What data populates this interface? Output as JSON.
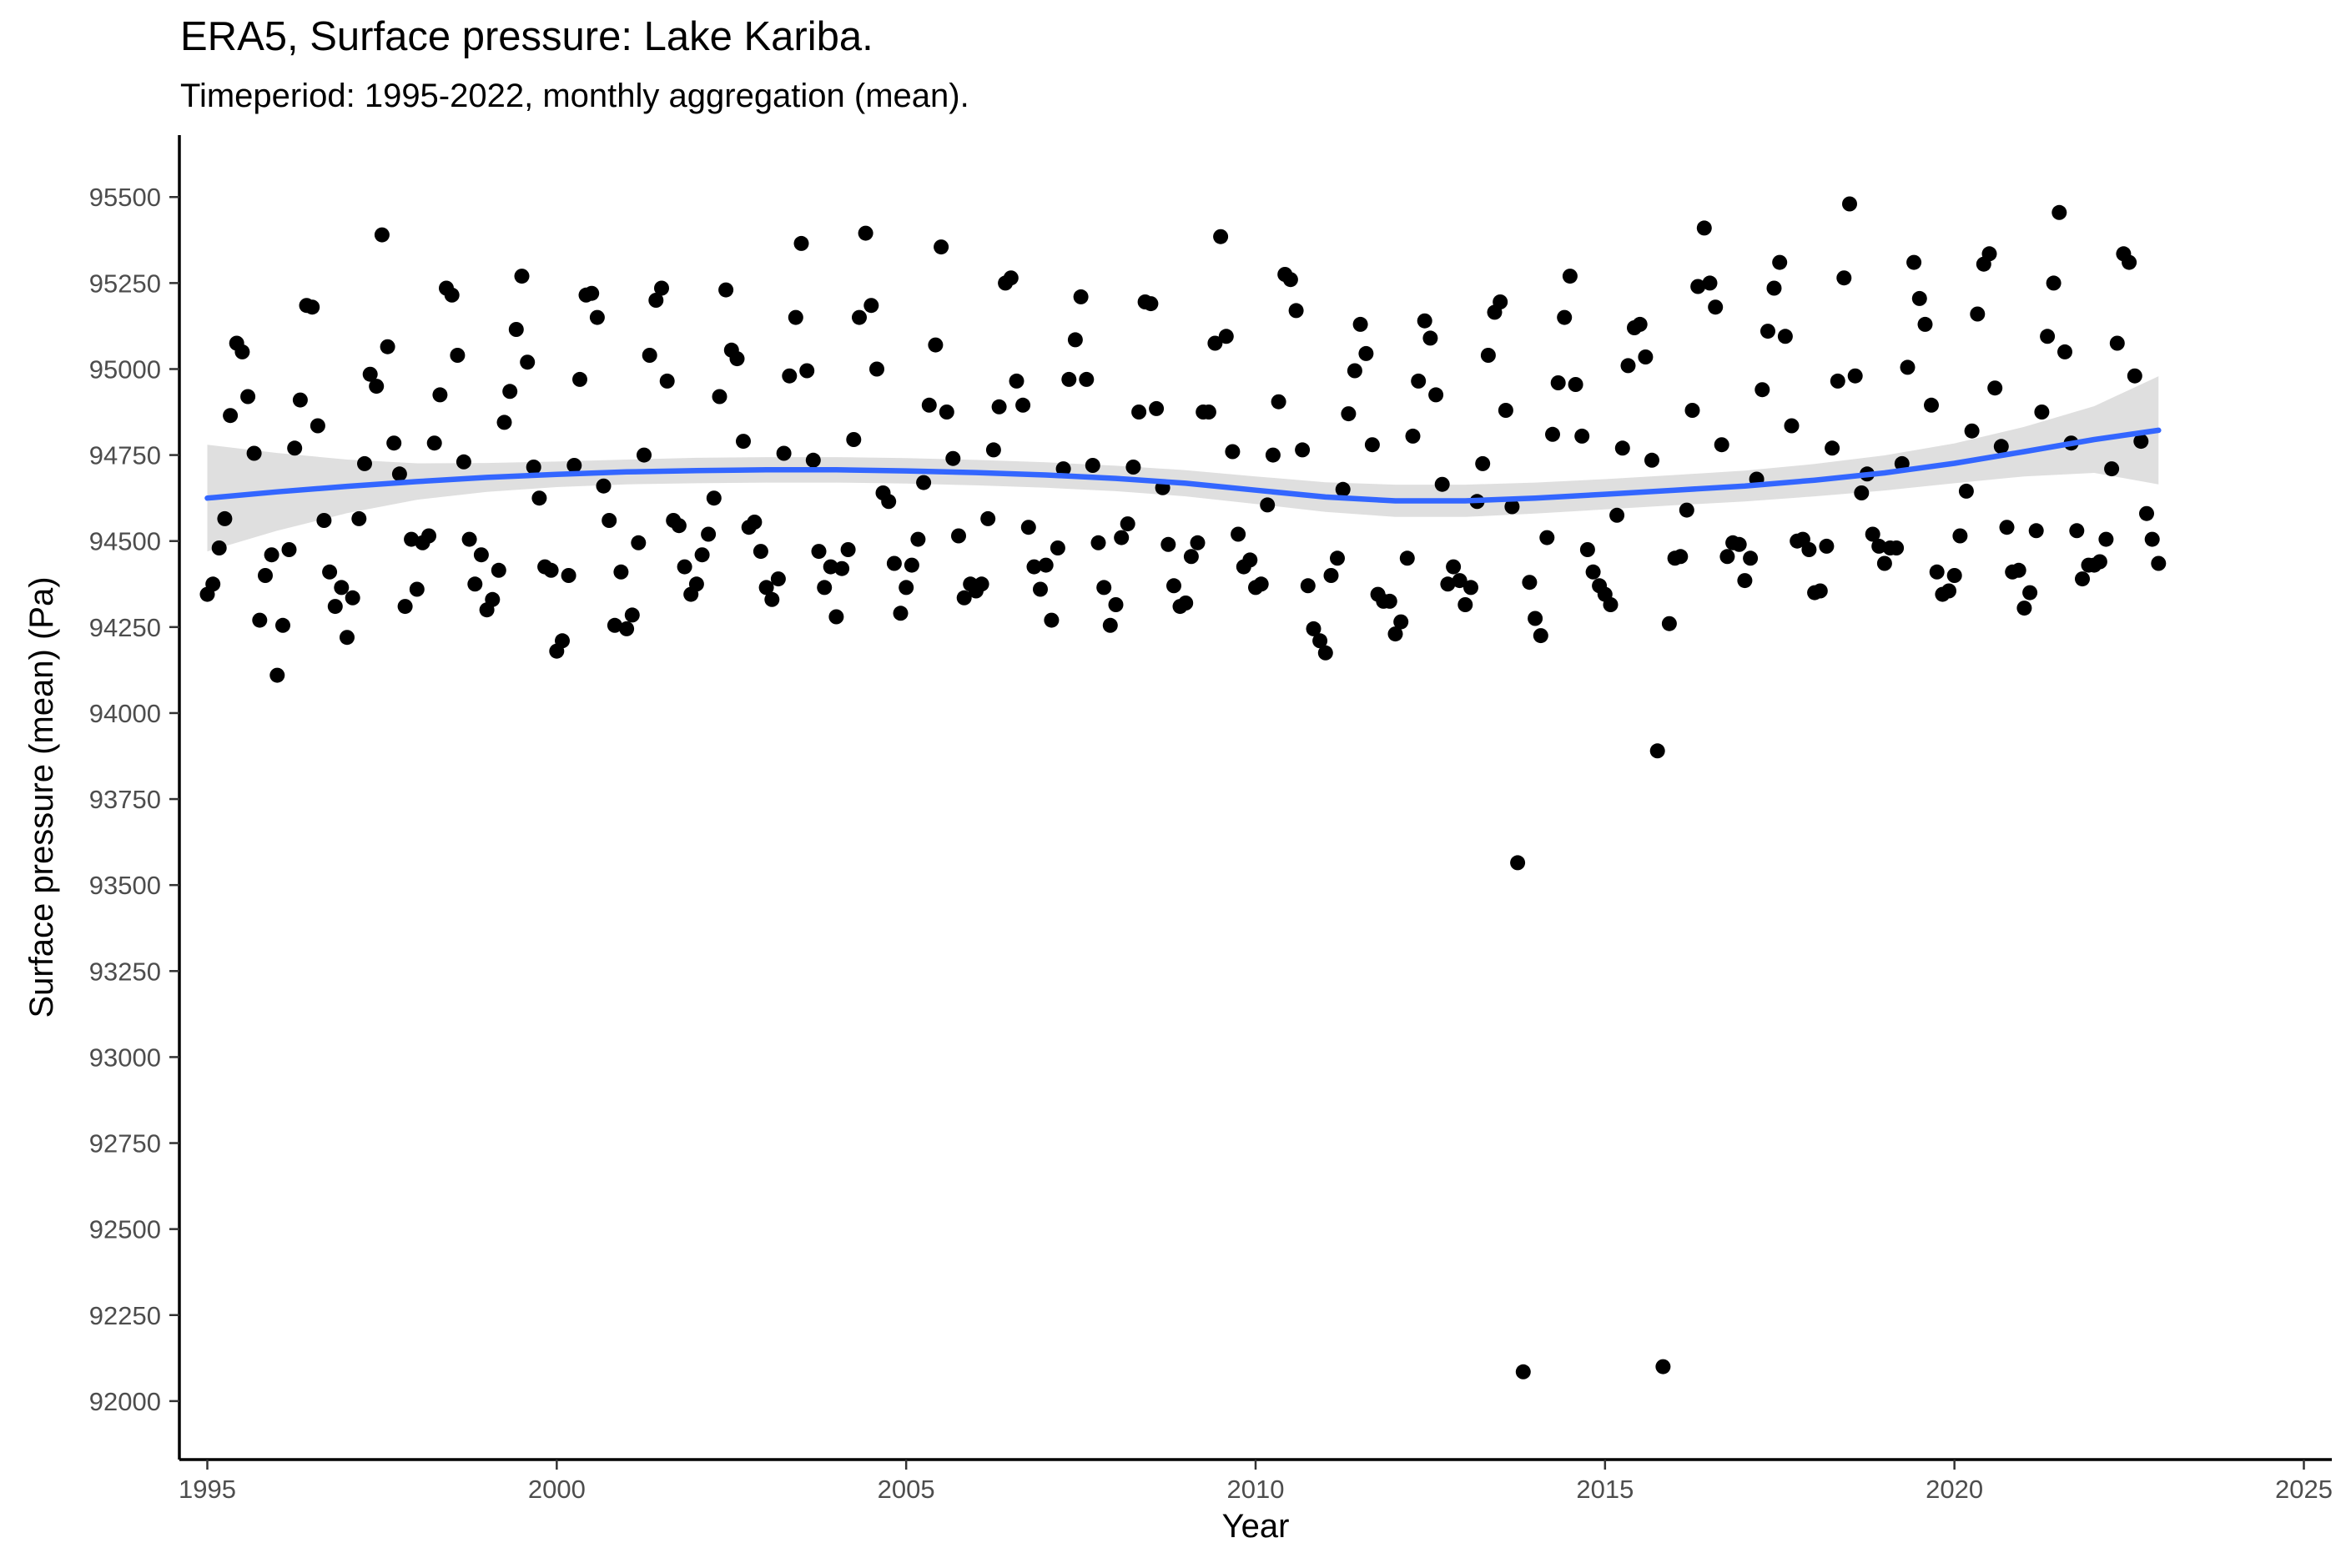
{
  "chart_data": {
    "type": "scatter",
    "title": "ERA5, Surface pressure: Lake Kariba.",
    "subtitle": "Timeperiod: 1995-2022, monthly aggregation (mean).",
    "xlabel": "Year",
    "ylabel": "Surface pressure (mean) (Pa)",
    "xlim": [
      1994.6,
      2025.4
    ],
    "ylim": [
      91830,
      95680
    ],
    "x_ticks": [
      1995,
      2000,
      2005,
      2010,
      2015,
      2020,
      2025
    ],
    "y_ticks": [
      92000,
      92250,
      92500,
      92750,
      93000,
      93250,
      93500,
      93750,
      94000,
      94250,
      94500,
      94750,
      95000,
      95250,
      95500
    ],
    "grid": false,
    "legend": "none",
    "colors": {
      "points": "#000000",
      "smooth_line": "#3366ff",
      "confidence_band": "#d9d9d9"
    },
    "points": [
      [
        1995.0,
        94345
      ],
      [
        1995.08,
        94375
      ],
      [
        1995.17,
        94480
      ],
      [
        1995.25,
        94565
      ],
      [
        1995.33,
        94865
      ],
      [
        1995.42,
        95075
      ],
      [
        1995.5,
        95050
      ],
      [
        1995.58,
        94920
      ],
      [
        1995.67,
        94755
      ],
      [
        1995.75,
        94270
      ],
      [
        1995.83,
        94400
      ],
      [
        1995.92,
        94460
      ],
      [
        1996.0,
        94110
      ],
      [
        1996.08,
        94255
      ],
      [
        1996.17,
        94475
      ],
      [
        1996.25,
        94770
      ],
      [
        1996.33,
        94910
      ],
      [
        1996.42,
        95185
      ],
      [
        1996.5,
        95180
      ],
      [
        1996.58,
        94835
      ],
      [
        1996.67,
        94560
      ],
      [
        1996.75,
        94410
      ],
      [
        1996.83,
        94310
      ],
      [
        1996.92,
        94365
      ],
      [
        1997.0,
        94220
      ],
      [
        1997.08,
        94335
      ],
      [
        1997.17,
        94565
      ],
      [
        1997.25,
        94725
      ],
      [
        1997.33,
        94985
      ],
      [
        1997.42,
        94950
      ],
      [
        1997.5,
        95390
      ],
      [
        1997.58,
        95065
      ],
      [
        1997.67,
        94785
      ],
      [
        1997.75,
        94695
      ],
      [
        1997.83,
        94310
      ],
      [
        1997.92,
        94505
      ],
      [
        1998.0,
        94360
      ],
      [
        1998.08,
        94495
      ],
      [
        1998.17,
        94515
      ],
      [
        1998.25,
        94785
      ],
      [
        1998.33,
        94925
      ],
      [
        1998.42,
        95235
      ],
      [
        1998.5,
        95215
      ],
      [
        1998.58,
        95040
      ],
      [
        1998.67,
        94730
      ],
      [
        1998.75,
        94505
      ],
      [
        1998.83,
        94375
      ],
      [
        1998.92,
        94460
      ],
      [
        1999.0,
        94300
      ],
      [
        1999.08,
        94330
      ],
      [
        1999.17,
        94415
      ],
      [
        1999.25,
        94845
      ],
      [
        1999.33,
        94935
      ],
      [
        1999.42,
        95115
      ],
      [
        1999.5,
        95270
      ],
      [
        1999.58,
        95020
      ],
      [
        1999.67,
        94715
      ],
      [
        1999.75,
        94625
      ],
      [
        1999.83,
        94425
      ],
      [
        1999.92,
        94415
      ],
      [
        2000.0,
        94180
      ],
      [
        2000.08,
        94210
      ],
      [
        2000.17,
        94400
      ],
      [
        2000.25,
        94720
      ],
      [
        2000.33,
        94970
      ],
      [
        2000.42,
        95215
      ],
      [
        2000.5,
        95220
      ],
      [
        2000.58,
        95150
      ],
      [
        2000.67,
        94660
      ],
      [
        2000.75,
        94560
      ],
      [
        2000.83,
        94255
      ],
      [
        2000.92,
        94410
      ],
      [
        2001.0,
        94245
      ],
      [
        2001.08,
        94285
      ],
      [
        2001.17,
        94495
      ],
      [
        2001.25,
        94750
      ],
      [
        2001.33,
        95040
      ],
      [
        2001.42,
        95200
      ],
      [
        2001.5,
        95235
      ],
      [
        2001.58,
        94965
      ],
      [
        2001.67,
        94560
      ],
      [
        2001.75,
        94545
      ],
      [
        2001.83,
        94425
      ],
      [
        2001.92,
        94345
      ],
      [
        2002.0,
        94375
      ],
      [
        2002.08,
        94460
      ],
      [
        2002.17,
        94520
      ],
      [
        2002.25,
        94625
      ],
      [
        2002.33,
        94920
      ],
      [
        2002.42,
        95230
      ],
      [
        2002.5,
        95055
      ],
      [
        2002.58,
        95030
      ],
      [
        2002.67,
        94790
      ],
      [
        2002.75,
        94540
      ],
      [
        2002.83,
        94555
      ],
      [
        2002.92,
        94470
      ],
      [
        2003.0,
        94365
      ],
      [
        2003.08,
        94330
      ],
      [
        2003.17,
        94390
      ],
      [
        2003.25,
        94755
      ],
      [
        2003.33,
        94980
      ],
      [
        2003.42,
        95150
      ],
      [
        2003.5,
        95365
      ],
      [
        2003.58,
        94995
      ],
      [
        2003.67,
        94735
      ],
      [
        2003.75,
        94470
      ],
      [
        2003.83,
        94365
      ],
      [
        2003.92,
        94425
      ],
      [
        2004.0,
        94280
      ],
      [
        2004.08,
        94420
      ],
      [
        2004.17,
        94475
      ],
      [
        2004.25,
        94795
      ],
      [
        2004.33,
        95150
      ],
      [
        2004.42,
        95395
      ],
      [
        2004.5,
        95185
      ],
      [
        2004.58,
        95000
      ],
      [
        2004.67,
        94640
      ],
      [
        2004.75,
        94615
      ],
      [
        2004.83,
        94435
      ],
      [
        2004.92,
        94290
      ],
      [
        2005.0,
        94365
      ],
      [
        2005.08,
        94430
      ],
      [
        2005.17,
        94505
      ],
      [
        2005.25,
        94670
      ],
      [
        2005.33,
        94895
      ],
      [
        2005.42,
        95070
      ],
      [
        2005.5,
        95355
      ],
      [
        2005.58,
        94875
      ],
      [
        2005.67,
        94740
      ],
      [
        2005.75,
        94515
      ],
      [
        2005.83,
        94335
      ],
      [
        2005.92,
        94375
      ],
      [
        2006.0,
        94355
      ],
      [
        2006.08,
        94375
      ],
      [
        2006.17,
        94565
      ],
      [
        2006.25,
        94765
      ],
      [
        2006.33,
        94890
      ],
      [
        2006.42,
        95250
      ],
      [
        2006.5,
        95265
      ],
      [
        2006.58,
        94965
      ],
      [
        2006.67,
        94895
      ],
      [
        2006.75,
        94540
      ],
      [
        2006.83,
        94425
      ],
      [
        2006.92,
        94360
      ],
      [
        2007.0,
        94430
      ],
      [
        2007.08,
        94270
      ],
      [
        2007.17,
        94480
      ],
      [
        2007.25,
        94710
      ],
      [
        2007.33,
        94970
      ],
      [
        2007.42,
        95085
      ],
      [
        2007.5,
        95210
      ],
      [
        2007.58,
        94970
      ],
      [
        2007.67,
        94720
      ],
      [
        2007.75,
        94495
      ],
      [
        2007.83,
        94365
      ],
      [
        2007.92,
        94255
      ],
      [
        2008.0,
        94315
      ],
      [
        2008.08,
        94510
      ],
      [
        2008.17,
        94550
      ],
      [
        2008.25,
        94715
      ],
      [
        2008.33,
        94875
      ],
      [
        2008.42,
        95195
      ],
      [
        2008.5,
        95190
      ],
      [
        2008.58,
        94885
      ],
      [
        2008.67,
        94655
      ],
      [
        2008.75,
        94490
      ],
      [
        2008.83,
        94370
      ],
      [
        2008.92,
        94310
      ],
      [
        2009.0,
        94320
      ],
      [
        2009.08,
        94455
      ],
      [
        2009.17,
        94495
      ],
      [
        2009.25,
        94875
      ],
      [
        2009.33,
        94875
      ],
      [
        2009.42,
        95075
      ],
      [
        2009.5,
        95385
      ],
      [
        2009.58,
        95095
      ],
      [
        2009.67,
        94760
      ],
      [
        2009.75,
        94520
      ],
      [
        2009.83,
        94425
      ],
      [
        2009.92,
        94445
      ],
      [
        2010.0,
        94365
      ],
      [
        2010.08,
        94375
      ],
      [
        2010.17,
        94605
      ],
      [
        2010.25,
        94750
      ],
      [
        2010.33,
        94905
      ],
      [
        2010.42,
        95275
      ],
      [
        2010.5,
        95260
      ],
      [
        2010.58,
        95170
      ],
      [
        2010.67,
        94765
      ],
      [
        2010.75,
        94370
      ],
      [
        2010.83,
        94245
      ],
      [
        2010.92,
        94210
      ],
      [
        2011.0,
        94175
      ],
      [
        2011.08,
        94400
      ],
      [
        2011.17,
        94450
      ],
      [
        2011.25,
        94650
      ],
      [
        2011.33,
        94870
      ],
      [
        2011.42,
        94995
      ],
      [
        2011.5,
        95130
      ],
      [
        2011.58,
        95045
      ],
      [
        2011.67,
        94780
      ],
      [
        2011.75,
        94345
      ],
      [
        2011.83,
        94325
      ],
      [
        2011.92,
        94325
      ],
      [
        2012.0,
        94230
      ],
      [
        2012.08,
        94265
      ],
      [
        2012.17,
        94450
      ],
      [
        2012.25,
        94805
      ],
      [
        2012.33,
        94965
      ],
      [
        2012.42,
        95140
      ],
      [
        2012.5,
        95090
      ],
      [
        2012.58,
        94925
      ],
      [
        2012.67,
        94665
      ],
      [
        2012.75,
        94375
      ],
      [
        2012.83,
        94425
      ],
      [
        2012.92,
        94385
      ],
      [
        2013.0,
        94315
      ],
      [
        2013.08,
        94365
      ],
      [
        2013.17,
        94615
      ],
      [
        2013.25,
        94725
      ],
      [
        2013.33,
        95040
      ],
      [
        2013.42,
        95165
      ],
      [
        2013.5,
        95195
      ],
      [
        2013.58,
        94880
      ],
      [
        2013.67,
        94600
      ],
      [
        2013.75,
        93565
      ],
      [
        2013.83,
        92085
      ],
      [
        2013.92,
        94380
      ],
      [
        2014.0,
        94275
      ],
      [
        2014.08,
        94225
      ],
      [
        2014.17,
        94510
      ],
      [
        2014.25,
        94810
      ],
      [
        2014.33,
        94960
      ],
      [
        2014.42,
        95150
      ],
      [
        2014.5,
        95270
      ],
      [
        2014.58,
        94955
      ],
      [
        2014.67,
        94805
      ],
      [
        2014.75,
        94475
      ],
      [
        2014.83,
        94410
      ],
      [
        2014.92,
        94370
      ],
      [
        2015.0,
        94345
      ],
      [
        2015.08,
        94315
      ],
      [
        2015.17,
        94575
      ],
      [
        2015.25,
        94770
      ],
      [
        2015.33,
        95010
      ],
      [
        2015.42,
        95120
      ],
      [
        2015.5,
        95130
      ],
      [
        2015.58,
        95035
      ],
      [
        2015.67,
        94735
      ],
      [
        2015.75,
        93890
      ],
      [
        2015.83,
        92100
      ],
      [
        2015.92,
        94260
      ],
      [
        2016.0,
        94450
      ],
      [
        2016.08,
        94455
      ],
      [
        2016.17,
        94590
      ],
      [
        2016.25,
        94880
      ],
      [
        2016.33,
        95240
      ],
      [
        2016.42,
        95410
      ],
      [
        2016.5,
        95250
      ],
      [
        2016.58,
        95180
      ],
      [
        2016.67,
        94780
      ],
      [
        2016.75,
        94455
      ],
      [
        2016.83,
        94495
      ],
      [
        2016.92,
        94490
      ],
      [
        2017.0,
        94385
      ],
      [
        2017.08,
        94450
      ],
      [
        2017.17,
        94680
      ],
      [
        2017.25,
        94940
      ],
      [
        2017.33,
        95110
      ],
      [
        2017.42,
        95235
      ],
      [
        2017.5,
        95310
      ],
      [
        2017.58,
        95095
      ],
      [
        2017.67,
        94835
      ],
      [
        2017.75,
        94500
      ],
      [
        2017.83,
        94505
      ],
      [
        2017.92,
        94475
      ],
      [
        2018.0,
        94350
      ],
      [
        2018.08,
        94355
      ],
      [
        2018.17,
        94485
      ],
      [
        2018.25,
        94770
      ],
      [
        2018.33,
        94965
      ],
      [
        2018.42,
        95265
      ],
      [
        2018.5,
        95480
      ],
      [
        2018.58,
        94980
      ],
      [
        2018.67,
        94640
      ],
      [
        2018.75,
        94695
      ],
      [
        2018.83,
        94520
      ],
      [
        2018.92,
        94485
      ],
      [
        2019.0,
        94435
      ],
      [
        2019.08,
        94480
      ],
      [
        2019.17,
        94480
      ],
      [
        2019.25,
        94725
      ],
      [
        2019.33,
        95005
      ],
      [
        2019.42,
        95310
      ],
      [
        2019.5,
        95205
      ],
      [
        2019.58,
        95130
      ],
      [
        2019.67,
        94895
      ],
      [
        2019.75,
        94410
      ],
      [
        2019.83,
        94345
      ],
      [
        2019.92,
        94355
      ],
      [
        2020.0,
        94400
      ],
      [
        2020.08,
        94515
      ],
      [
        2020.17,
        94645
      ],
      [
        2020.25,
        94820
      ],
      [
        2020.33,
        95160
      ],
      [
        2020.42,
        95305
      ],
      [
        2020.5,
        95335
      ],
      [
        2020.58,
        94945
      ],
      [
        2020.67,
        94775
      ],
      [
        2020.75,
        94540
      ],
      [
        2020.83,
        94410
      ],
      [
        2020.92,
        94415
      ],
      [
        2021.0,
        94305
      ],
      [
        2021.08,
        94350
      ],
      [
        2021.17,
        94530
      ],
      [
        2021.25,
        94875
      ],
      [
        2021.33,
        95095
      ],
      [
        2021.42,
        95250
      ],
      [
        2021.5,
        95455
      ],
      [
        2021.58,
        95050
      ],
      [
        2021.67,
        94785
      ],
      [
        2021.75,
        94530
      ],
      [
        2021.83,
        94390
      ],
      [
        2021.92,
        94430
      ],
      [
        2022.0,
        94430
      ],
      [
        2022.08,
        94440
      ],
      [
        2022.17,
        94505
      ],
      [
        2022.25,
        94710
      ],
      [
        2022.33,
        95075
      ],
      [
        2022.42,
        95335
      ],
      [
        2022.5,
        95310
      ],
      [
        2022.58,
        94980
      ],
      [
        2022.67,
        94790
      ],
      [
        2022.75,
        94580
      ],
      [
        2022.83,
        94505
      ],
      [
        2022.92,
        94435
      ]
    ],
    "smooth": {
      "name": "",
      "x": [
        1995,
        1996,
        1997,
        1998,
        1999,
        2000,
        2001,
        2002,
        2003,
        2004,
        2005,
        2006,
        2007,
        2008,
        2009,
        2010,
        2011,
        2012,
        2013,
        2014,
        2015,
        2016,
        2017,
        2018,
        2019,
        2020,
        2021,
        2022,
        2022.92
      ],
      "y": [
        94625,
        94643,
        94659,
        94673,
        94685,
        94694,
        94701,
        94705,
        94707,
        94707,
        94704,
        94699,
        94692,
        94682,
        94668,
        94648,
        94628,
        94617,
        94617,
        94625,
        94636,
        94648,
        94660,
        94677,
        94698,
        94726,
        94760,
        94795,
        94822
      ],
      "lower": [
        94470,
        94530,
        94581,
        94620,
        94643,
        94657,
        94665,
        94668,
        94670,
        94670,
        94667,
        94662,
        94655,
        94645,
        94630,
        94608,
        94585,
        94570,
        94570,
        94580,
        94592,
        94604,
        94615,
        94630,
        94647,
        94668,
        94688,
        94698,
        94665
      ],
      "upper": [
        94780,
        94756,
        94737,
        94726,
        94727,
        94731,
        94737,
        94742,
        94744,
        94744,
        94741,
        94736,
        94729,
        94719,
        94706,
        94688,
        94671,
        94664,
        94664,
        94670,
        94680,
        94692,
        94705,
        94724,
        94749,
        94784,
        94832,
        94892,
        94979
      ]
    }
  }
}
